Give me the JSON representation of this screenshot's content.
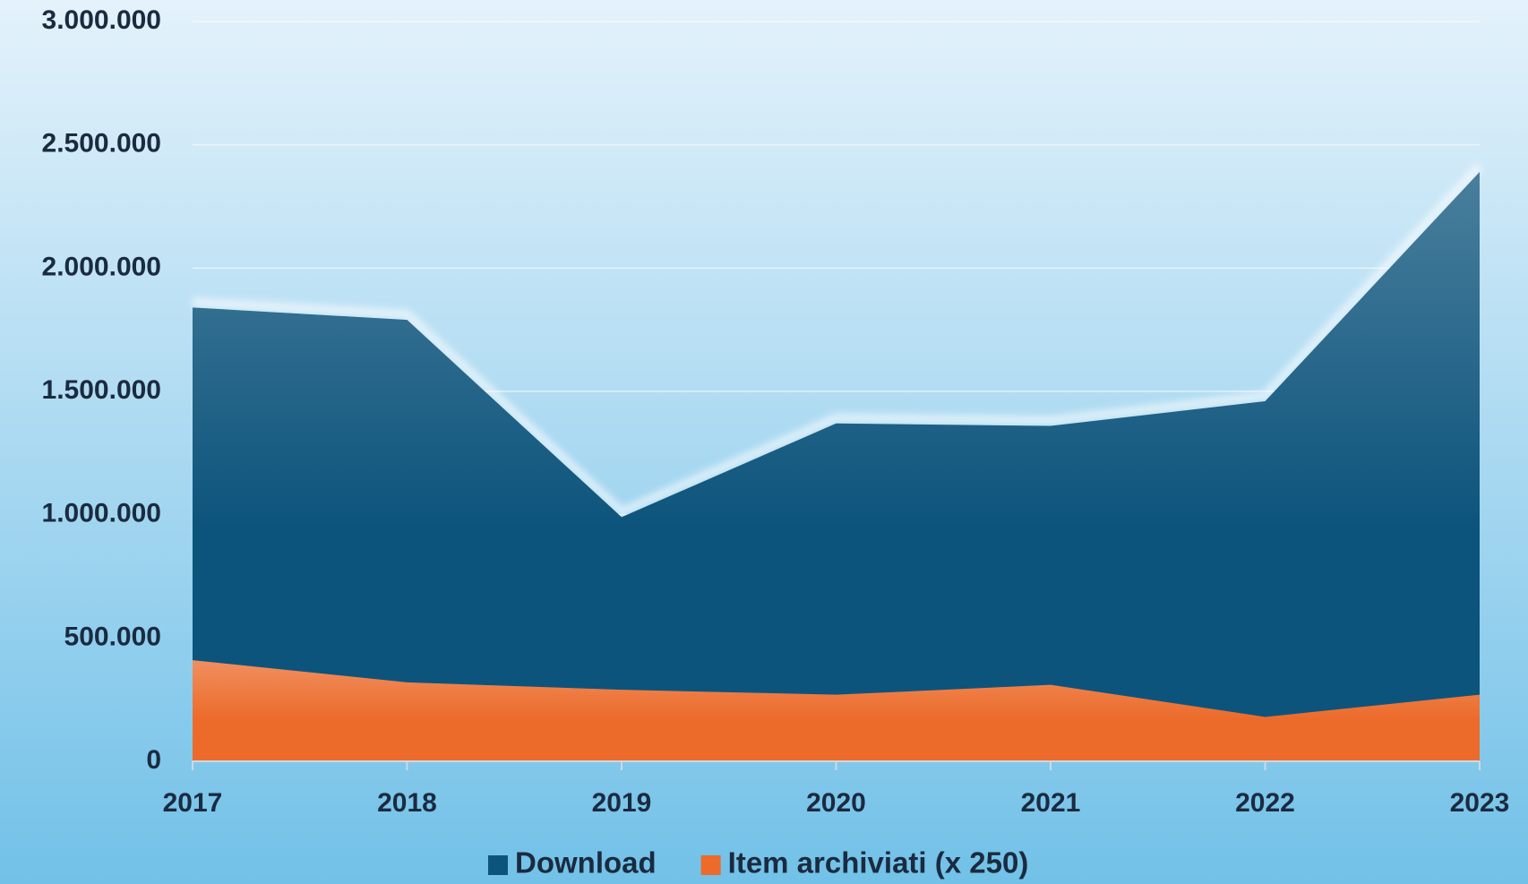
{
  "chart_data": {
    "type": "area",
    "categories": [
      "2017",
      "2018",
      "2019",
      "2020",
      "2021",
      "2022",
      "2023"
    ],
    "series": [
      {
        "name": "Download",
        "color": "#0d547c",
        "values": [
          1840000,
          1790000,
          990000,
          1370000,
          1360000,
          1460000,
          2390000
        ]
      },
      {
        "name": "Item archiviati (x 250)",
        "color": "#ec6a2a",
        "values": [
          410000,
          320000,
          290000,
          270000,
          310000,
          180000,
          270000
        ]
      }
    ],
    "ylim": [
      0,
      3000000
    ],
    "yticks": [
      0,
      {
        "value": 500000,
        "label": "500.000"
      },
      {
        "value": 1000000,
        "label": "1.000.000"
      },
      {
        "value": 1500000,
        "label": "1.500.000"
      },
      {
        "value": 2000000,
        "label": "2.000.000"
      },
      {
        "value": 2500000,
        "label": "2.500.000"
      },
      {
        "value": 3000000,
        "label": "3.000.000"
      }
    ],
    "grid": true,
    "legend": "bottom"
  }
}
